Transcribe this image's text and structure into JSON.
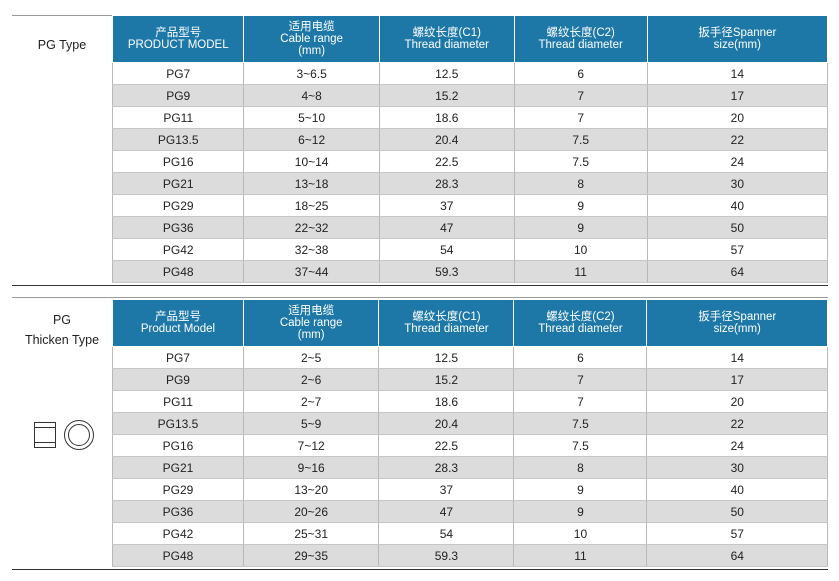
{
  "section1": {
    "label": "PG Type",
    "headers": [
      {
        "zh": "产品型号",
        "en": "PRODUCT MODEL",
        "unit": ""
      },
      {
        "zh": "适用电缆",
        "en": "Cable range",
        "unit": "(mm)"
      },
      {
        "zh": "螺纹长度(C1)",
        "en": "Thread diameter",
        "unit": ""
      },
      {
        "zh": "螺纹长度(C2)",
        "en": "Thread diameter",
        "unit": ""
      },
      {
        "zh": "扳手径Spanner",
        "en": "size(mm)",
        "unit": ""
      }
    ],
    "rows": [
      [
        "PG7",
        "3~6.5",
        "12.5",
        "6",
        "14"
      ],
      [
        "PG9",
        "4~8",
        "15.2",
        "7",
        "17"
      ],
      [
        "PG11",
        "5~10",
        "18.6",
        "7",
        "20"
      ],
      [
        "PG13.5",
        "6~12",
        "20.4",
        "7.5",
        "22"
      ],
      [
        "PG16",
        "10~14",
        "22.5",
        "7.5",
        "24"
      ],
      [
        "PG21",
        "13~18",
        "28.3",
        "8",
        "30"
      ],
      [
        "PG29",
        "18~25",
        "37",
        "9",
        "40"
      ],
      [
        "PG36",
        "22~32",
        "47",
        "9",
        "50"
      ],
      [
        "PG42",
        "32~38",
        "54",
        "10",
        "57"
      ],
      [
        "PG48",
        "37~44",
        "59.3",
        "11",
        "64"
      ]
    ]
  },
  "section2": {
    "label_line1": "PG",
    "label_line2": "Thicken Type",
    "icon": "cable-gland-side-and-front-view-icon",
    "headers": [
      {
        "zh": "产品型号",
        "en": "Product Model",
        "unit": ""
      },
      {
        "zh": "适用电缆",
        "en": "Cable range",
        "unit": "(mm)"
      },
      {
        "zh": "螺纹长度(C1)",
        "en": "Thread diameter",
        "unit": ""
      },
      {
        "zh": "螺纹长度(C2)",
        "en": "Thread diameter",
        "unit": ""
      },
      {
        "zh": "扳手径Spanner",
        "en": "size(mm)",
        "unit": ""
      }
    ],
    "rows": [
      [
        "PG7",
        "2~5",
        "12.5",
        "6",
        "14"
      ],
      [
        "PG9",
        "2~6",
        "15.2",
        "7",
        "17"
      ],
      [
        "PG11",
        "2~7",
        "18.6",
        "7",
        "20"
      ],
      [
        "PG13.5",
        "5~9",
        "20.4",
        "7.5",
        "22"
      ],
      [
        "PG16",
        "7~12",
        "22.5",
        "7.5",
        "24"
      ],
      [
        "PG21",
        "9~16",
        "28.3",
        "8",
        "30"
      ],
      [
        "PG29",
        "13~20",
        "37",
        "9",
        "40"
      ],
      [
        "PG36",
        "20~26",
        "47",
        "9",
        "50"
      ],
      [
        "PG42",
        "25~31",
        "54",
        "10",
        "57"
      ],
      [
        "PG48",
        "29~35",
        "59.3",
        "11",
        "64"
      ]
    ]
  },
  "colors": {
    "header_bg": "#1d78a8",
    "header_text": "#ffffff",
    "row_odd": "#ffffff",
    "row_even": "#dcdcdc"
  }
}
